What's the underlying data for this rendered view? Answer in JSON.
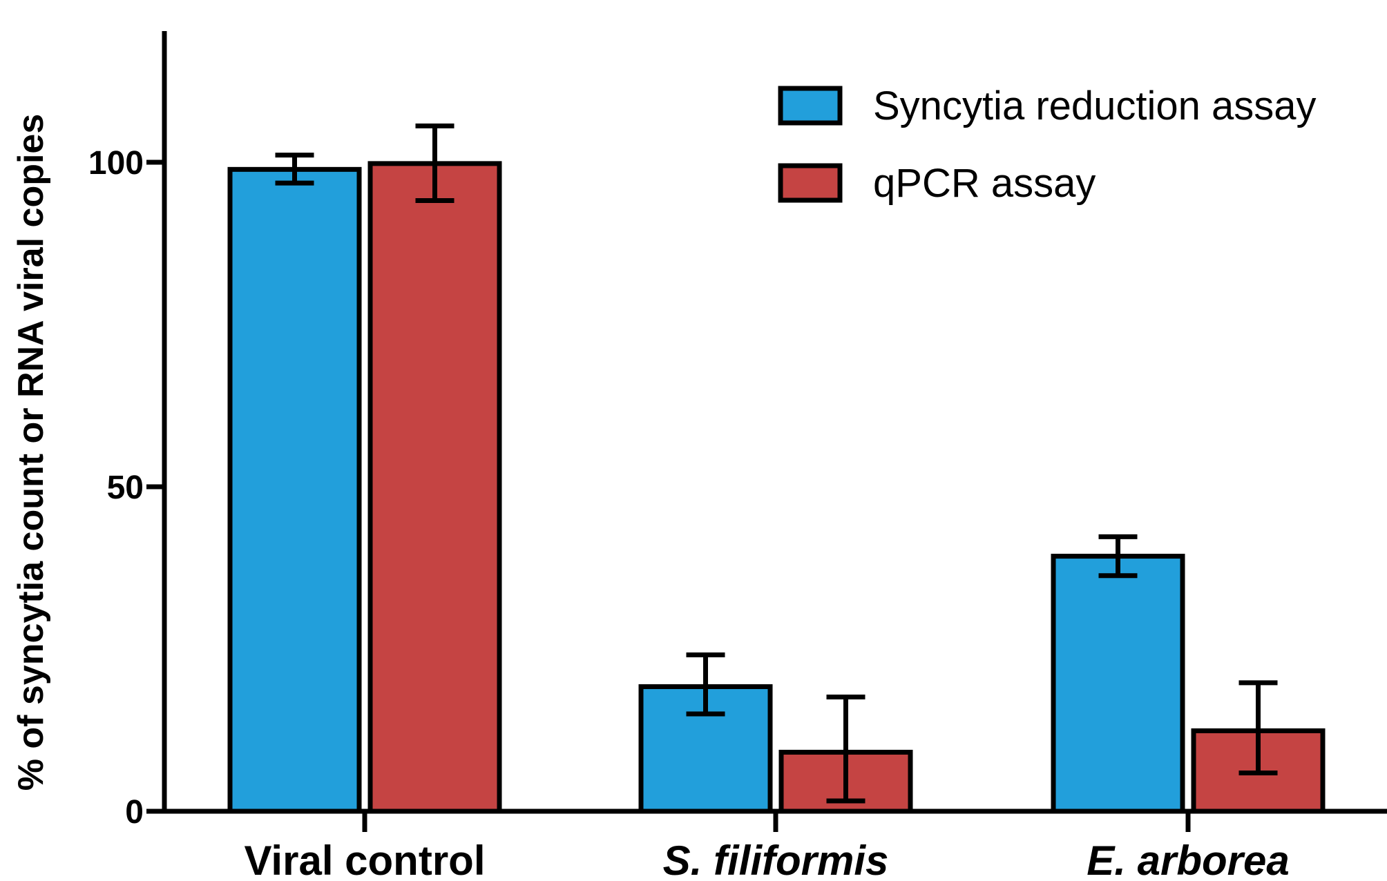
{
  "chart_data": {
    "type": "bar",
    "title": "",
    "xlabel": "",
    "ylabel": "% of syncytia count or RNA viral copies",
    "ylim": [
      0,
      120
    ],
    "yticks": [
      0,
      50,
      100
    ],
    "ytick_labels": [
      "0",
      "50",
      "100"
    ],
    "categories": [
      "Viral control",
      "S. filiformis",
      "E. arborea"
    ],
    "category_italic": [
      false,
      true,
      true
    ],
    "series": [
      {
        "name": "Syncytia reduction assay",
        "color": "#229fdb",
        "values": [
          98.9,
          19.2,
          39.3
        ],
        "err_low": [
          96.8,
          15.0,
          36.3
        ],
        "err_high": [
          101.1,
          24.1,
          42.3
        ]
      },
      {
        "name": "qPCR assay",
        "color": "#c54443",
        "values": [
          99.8,
          9.1,
          12.4
        ],
        "err_low": [
          94.1,
          1.6,
          5.9
        ],
        "err_high": [
          105.6,
          17.6,
          19.8
        ]
      }
    ],
    "legend_position": "top-right",
    "grid": false
  }
}
